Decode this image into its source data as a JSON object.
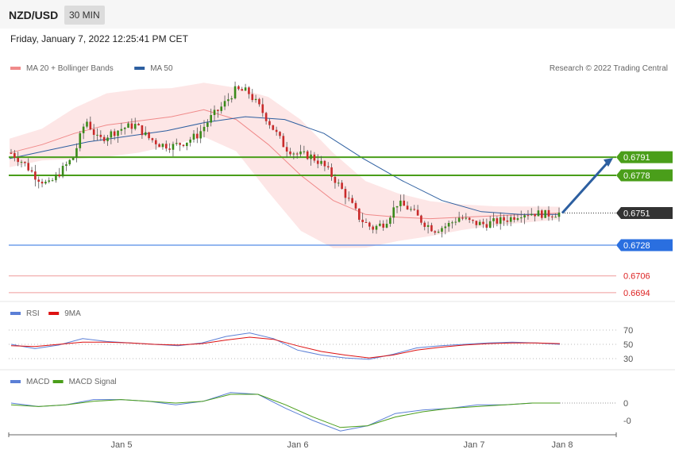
{
  "header": {
    "pair": "NZD/USD",
    "timeframe": "30 MIN"
  },
  "datetime": "Friday, January 7, 2022 12:25:41 PM CET",
  "legend": {
    "main": [
      {
        "label": "MA 20 + Bollinger Bands",
        "color": "#f08a8a"
      },
      {
        "label": "MA 50",
        "color": "#2d5fa0"
      }
    ],
    "rsi": [
      {
        "label": "RSI",
        "color": "#5b7fd6"
      },
      {
        "label": "9MA",
        "color": "#dd1111"
      }
    ],
    "macd": [
      {
        "label": "MACD",
        "color": "#5b7fd6"
      },
      {
        "label": "MACD Signal",
        "color": "#4a9e1a"
      }
    ]
  },
  "credit": "Research © 2022 Trading Central",
  "chart_data": {
    "type": "candlestick",
    "x_ticks": [
      "Jan 5",
      "Jan 6",
      "Jan 7",
      "Jan 8"
    ],
    "levels": [
      {
        "label": "0.6791",
        "value": 0.6791,
        "color": "#4a9e1a",
        "style": "solid"
      },
      {
        "label": "0.6778",
        "value": 0.6778,
        "color": "#4a9e1a",
        "style": "solid"
      },
      {
        "label": "0.6751",
        "value": 0.6751,
        "color": "#333333",
        "style": "dotted"
      },
      {
        "label": "0.6728",
        "value": 0.6728,
        "color": "#2a6fe0",
        "style": "solid"
      },
      {
        "label": "0.6706",
        "value": 0.6706,
        "color": "#dd2222",
        "style": "solid"
      },
      {
        "label": "0.6694",
        "value": 0.6694,
        "color": "#dd2222",
        "style": "solid"
      }
    ],
    "close_path": [
      0.6794,
      0.6787,
      0.6777,
      0.6771,
      0.6781,
      0.6791,
      0.6818,
      0.6803,
      0.6808,
      0.6812,
      0.6814,
      0.6805,
      0.68,
      0.6799,
      0.6802,
      0.6807,
      0.6819,
      0.6828,
      0.6839,
      0.6838,
      0.6826,
      0.6812,
      0.6798,
      0.6793,
      0.6792,
      0.6786,
      0.6775,
      0.6762,
      0.6747,
      0.674,
      0.6744,
      0.6758,
      0.6754,
      0.6745,
      0.6739,
      0.6742,
      0.6748,
      0.6744,
      0.6743,
      0.6745,
      0.6747,
      0.6751,
      0.6751,
      0.675,
      0.6751
    ],
    "bollinger_mid": [
      0.6794,
      0.68,
      0.6808,
      0.6814,
      0.6817,
      0.682,
      0.6825,
      0.6818,
      0.68,
      0.6778,
      0.676,
      0.675,
      0.6748,
      0.6747,
      0.6748,
      0.6749,
      0.675,
      0.6751
    ],
    "ma50": [
      0.679,
      0.6796,
      0.6802,
      0.6806,
      0.681,
      0.6816,
      0.682,
      0.6818,
      0.6808,
      0.679,
      0.6774,
      0.676,
      0.6752,
      0.675,
      0.675
    ],
    "forecast": {
      "from": 0.6751,
      "to": 0.6791
    },
    "rsi": {
      "ticks": [
        "70",
        "50",
        "30"
      ],
      "values": [
        50,
        44,
        49,
        58,
        54,
        52,
        50,
        48,
        52,
        61,
        66,
        58,
        42,
        35,
        31,
        29,
        36,
        45,
        48,
        50,
        52,
        53,
        52,
        50
      ],
      "ma9": [
        48,
        47,
        50,
        53,
        53,
        52,
        50,
        49,
        51,
        56,
        60,
        57,
        48,
        40,
        35,
        31,
        35,
        42,
        46,
        49,
        51,
        52,
        52,
        51
      ]
    },
    "macd": {
      "ticks": [
        "0",
        "-0"
      ],
      "values": [
        0.0,
        -0.2,
        -0.1,
        0.2,
        0.2,
        0.1,
        -0.1,
        0.1,
        0.6,
        0.5,
        -0.3,
        -1.0,
        -1.6,
        -1.3,
        -0.6,
        -0.4,
        -0.3,
        -0.1,
        -0.1,
        0.0,
        0.0
      ],
      "signal": [
        -0.1,
        -0.2,
        -0.1,
        0.1,
        0.2,
        0.1,
        0.0,
        0.1,
        0.5,
        0.5,
        -0.1,
        -0.8,
        -1.4,
        -1.3,
        -0.8,
        -0.5,
        -0.3,
        -0.2,
        -0.1,
        0.0,
        0.0
      ]
    }
  }
}
